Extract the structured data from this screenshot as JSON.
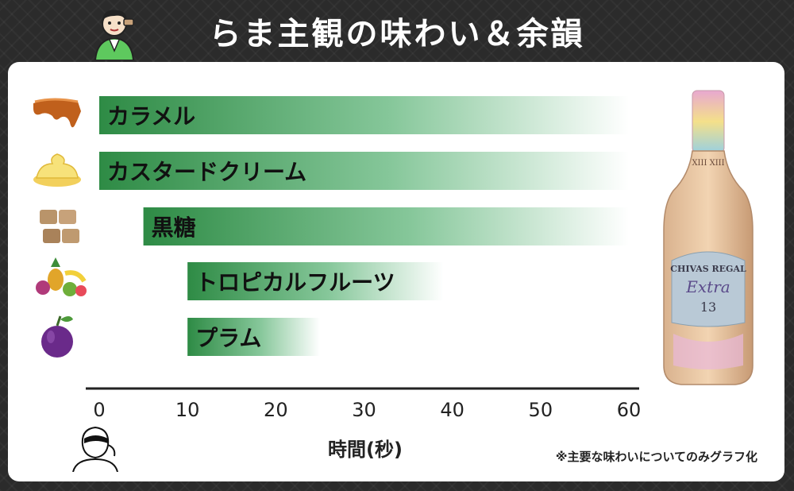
{
  "header": {
    "title": "らま主観の味わい＆余韻"
  },
  "footnote": "※主要な味わいについてのみグラフ化",
  "bottle": {
    "brand": "CHIVAS REGAL",
    "name": "Extra",
    "age": "13",
    "roman": "XIII XIII"
  },
  "icons": [
    "caramel-icon",
    "custard-cream-icon",
    "brown-sugar-icon",
    "tropical-fruit-icon",
    "plum-icon"
  ],
  "colors": {
    "bar_start": "#2e8b45",
    "bar_end": "#ffffff",
    "axis": "#222222"
  },
  "chart_data": {
    "type": "bar",
    "orientation": "horizontal",
    "xlabel": "時間(秒)",
    "ylabel": "",
    "xlim": [
      0,
      60
    ],
    "xticks": [
      0,
      10,
      20,
      30,
      40,
      50,
      60
    ],
    "grid": false,
    "bars": [
      {
        "label": "カラメル",
        "start": 0,
        "end": 60
      },
      {
        "label": "カスタードクリーム",
        "start": 0,
        "end": 60
      },
      {
        "label": "黒糖",
        "start": 5,
        "end": 60
      },
      {
        "label": "トロピカルフルーツ",
        "start": 10,
        "end": 39
      },
      {
        "label": "プラム",
        "start": 10,
        "end": 25
      }
    ]
  }
}
